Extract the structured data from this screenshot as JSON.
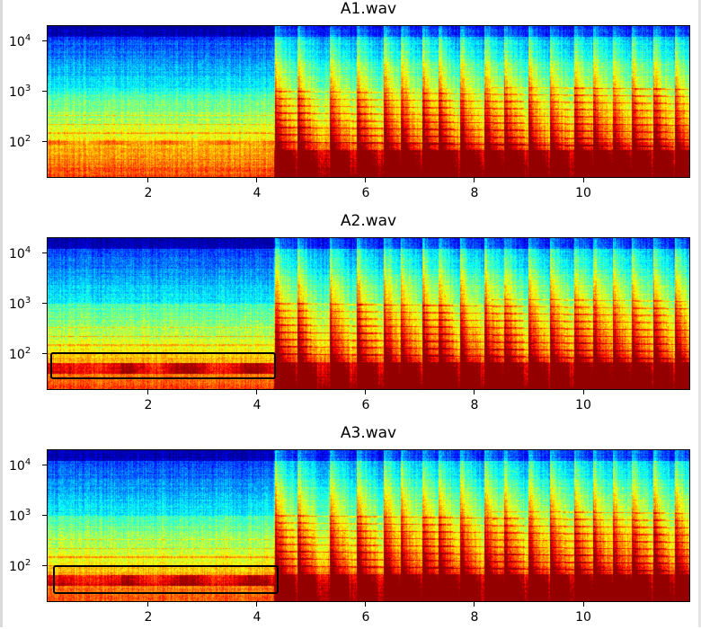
{
  "chart_data": [
    {
      "type": "heatmap",
      "title": "A1.wav",
      "xlabel": "",
      "ylabel": "",
      "xlim": [
        0.15,
        11.95
      ],
      "ylim": [
        20,
        20000
      ],
      "yscale": "log",
      "xticks": [
        2,
        4,
        6,
        8,
        10
      ],
      "xtick_labels": [
        "2",
        "4",
        "6",
        "8",
        "10"
      ],
      "yticks": [
        100,
        1000,
        10000
      ],
      "ytick_labels": [
        {
          "base": "10",
          "exp": "2"
        },
        {
          "base": "10",
          "exp": "3"
        },
        {
          "base": "10",
          "exp": "4"
        }
      ],
      "colormap": "jet",
      "highlight_boxes": []
    },
    {
      "type": "heatmap",
      "title": "A2.wav",
      "xlabel": "",
      "ylabel": "",
      "xlim": [
        0.15,
        11.95
      ],
      "ylim": [
        20,
        20000
      ],
      "yscale": "log",
      "xticks": [
        2,
        4,
        6,
        8,
        10
      ],
      "xtick_labels": [
        "2",
        "4",
        "6",
        "8",
        "10"
      ],
      "yticks": [
        100,
        1000,
        10000
      ],
      "ytick_labels": [
        {
          "base": "10",
          "exp": "2"
        },
        {
          "base": "10",
          "exp": "3"
        },
        {
          "base": "10",
          "exp": "4"
        }
      ],
      "colormap": "jet",
      "highlight_boxes": [
        {
          "x": [
            0.2,
            4.35
          ],
          "y": [
            32,
            110
          ]
        }
      ]
    },
    {
      "type": "heatmap",
      "title": "A3.wav",
      "xlabel": "",
      "ylabel": "",
      "xlim": [
        0.15,
        11.95
      ],
      "ylim": [
        20,
        20000
      ],
      "yscale": "log",
      "xticks": [
        2,
        4,
        6,
        8,
        10
      ],
      "xtick_labels": [
        "2",
        "4",
        "6",
        "8",
        "10"
      ],
      "yticks": [
        100,
        1000,
        10000
      ],
      "ytick_labels": [
        {
          "base": "10",
          "exp": "2"
        },
        {
          "base": "10",
          "exp": "3"
        },
        {
          "base": "10",
          "exp": "4"
        }
      ],
      "colormap": "jet",
      "highlight_boxes": [
        {
          "x": [
            0.25,
            4.4
          ],
          "y": [
            28,
            105
          ]
        }
      ]
    }
  ]
}
